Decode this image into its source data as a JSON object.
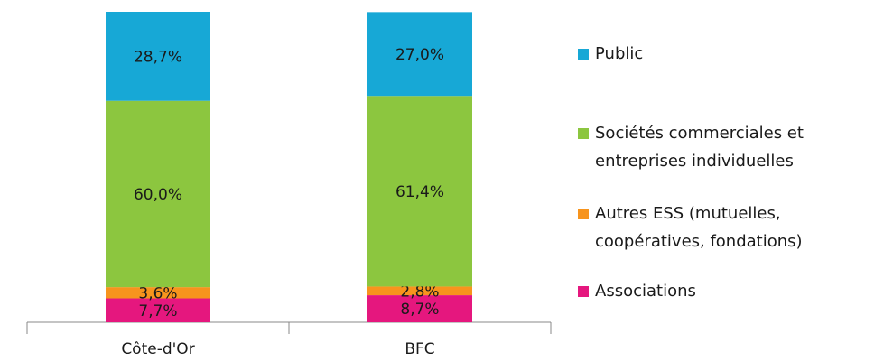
{
  "chart_data": {
    "type": "stacked_bar",
    "categories": [
      "Côte-d'Or",
      "BFC"
    ],
    "ylim": [
      0,
      100
    ],
    "legend": "right",
    "series": [
      {
        "name": "Associations",
        "color": "#e5177e",
        "values": [
          7.7,
          8.7
        ],
        "value_labels": [
          "7,7%",
          "8,7%"
        ]
      },
      {
        "name": "Autres ESS (mutuelles, coopératives, fondations)",
        "color": "#f7941d",
        "values": [
          3.6,
          2.8
        ],
        "value_labels": [
          "3,6%",
          "2,8%"
        ]
      },
      {
        "name": "Sociétés commerciales et entreprises individuelles",
        "color": "#8cc63f",
        "values": [
          60.0,
          61.4
        ],
        "value_labels": [
          "60,0%",
          "61,4%"
        ]
      },
      {
        "name": "Public",
        "color": "#17a8d6",
        "values": [
          28.7,
          27.0
        ],
        "value_labels": [
          "28,7%",
          "27,0%"
        ]
      }
    ]
  }
}
